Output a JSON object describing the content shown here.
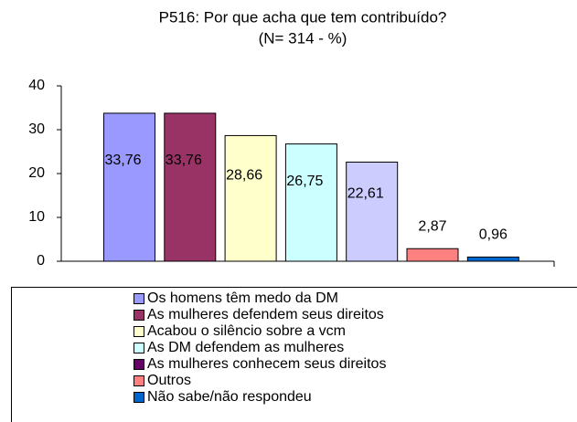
{
  "chart_data": {
    "type": "bar",
    "title": "P516: Por que acha que tem contribuído?",
    "subtitle": "(N= 314 - %)",
    "categories": [
      "Os homens têm medo da DM",
      "As mulheres defendem seus direitos",
      "Acabou o silêncio sobre a vcm",
      "As DM defendem as mulheres",
      "As mulheres conhecem seus direitos",
      "Outros",
      "Não sabe/não respondeu"
    ],
    "values": [
      33.76,
      33.76,
      28.66,
      26.75,
      22.61,
      2.87,
      0.96
    ],
    "value_labels": [
      "33,76",
      "33,76",
      "28,66",
      "26,75",
      "22,61",
      "2,87",
      "0,96"
    ],
    "colors": [
      "#9999ff",
      "#993366",
      "#ffffcc",
      "#ccffff",
      "#ccccff",
      "#ff8080",
      "#0066cc"
    ],
    "legend_colors": [
      "#9999ff",
      "#993366",
      "#ffffcc",
      "#ccffff",
      "#660066",
      "#ff8080",
      "#0066cc"
    ],
    "ylim": [
      0,
      40
    ],
    "yticks": [
      0,
      10,
      20,
      30,
      40
    ]
  }
}
